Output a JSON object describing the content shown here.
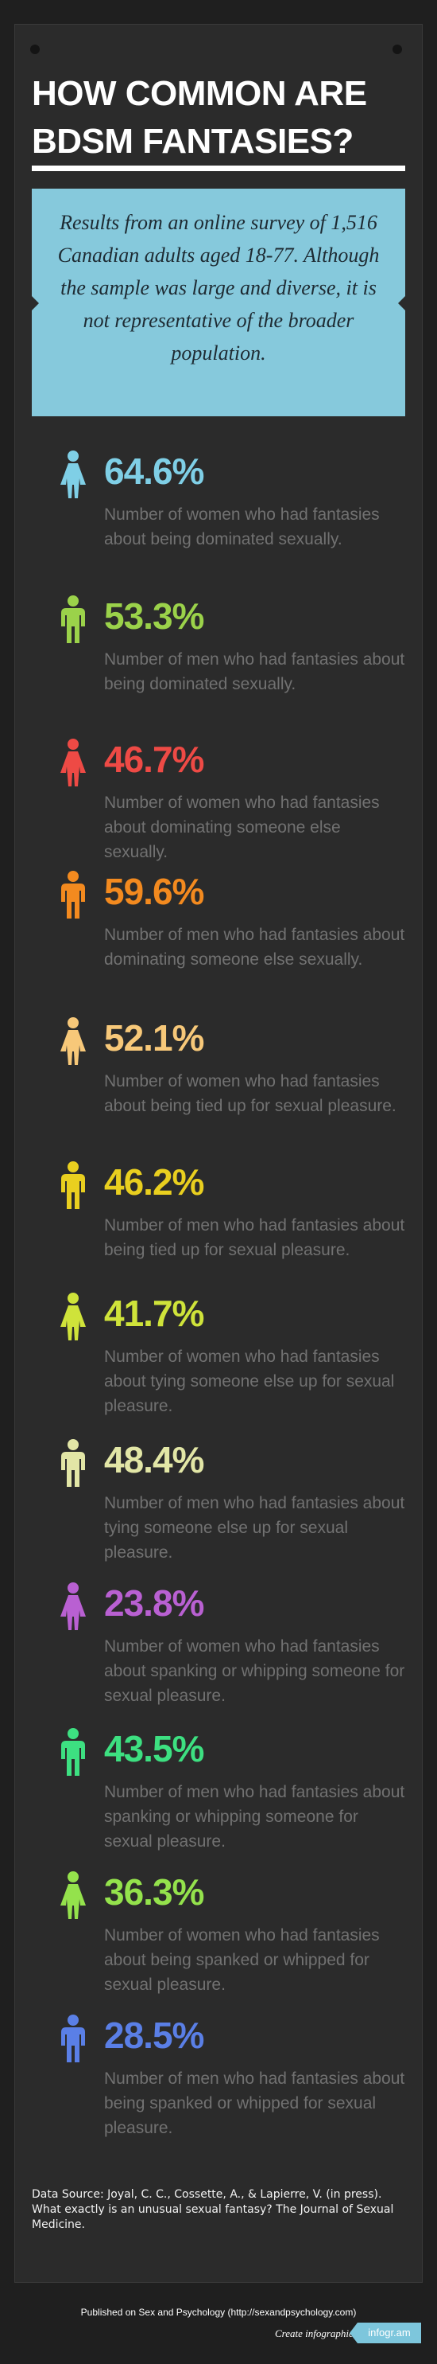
{
  "title_line1": "HOW COMMON ARE",
  "title_line2": "BDSM FANTASIES?",
  "intro": "Results from an online survey of 1,516 Canadian adults aged 18-77. Although the sample was large and diverse, it is not representative of the broader population.",
  "stats": [
    {
      "gender": "female",
      "color": "#7fcfe6",
      "percent": "64.6%",
      "text": "Number of women who had fantasies about being dominated sexually."
    },
    {
      "gender": "male",
      "color": "#9bd24a",
      "percent": "53.3%",
      "text": "Number of men who had fantasies about being dominated sexually."
    },
    {
      "gender": "female",
      "color": "#ee4a45",
      "percent": "46.7%",
      "text": "Number of women who had fantasies about dominating someone else sexually."
    },
    {
      "gender": "male",
      "color": "#f38a1f",
      "percent": "59.6%",
      "text": "Number of men who had fantasies about dominating someone else sexually."
    },
    {
      "gender": "female",
      "color": "#f7c879",
      "percent": "52.1%",
      "text": "Number of women who had fantasies about being tied up for sexual pleasure."
    },
    {
      "gender": "male",
      "color": "#e9cf1f",
      "percent": "46.2%",
      "text": "Number of men who had fantasies about being tied up for sexual pleasure."
    },
    {
      "gender": "female",
      "color": "#cfe33a",
      "percent": "41.7%",
      "text": "Number of women who had fantasies about tying someone else up for sexual pleasure."
    },
    {
      "gender": "male",
      "color": "#e2e6a6",
      "percent": "48.4%",
      "text": "Number of men who had fantasies about tying someone else up for sexual pleasure."
    },
    {
      "gender": "female",
      "color": "#b960d2",
      "percent": "23.8%",
      "text": "Number of women who had fantasies about spanking or whipping someone for sexual pleasure."
    },
    {
      "gender": "male",
      "color": "#3de081",
      "percent": "43.5%",
      "text": "Number of men who had fantasies about spanking or whipping someone for sexual pleasure."
    },
    {
      "gender": "female",
      "color": "#94e24c",
      "percent": "36.3%",
      "text": "Number of women who had fantasies about being spanked or whipped for sexual pleasure."
    },
    {
      "gender": "male",
      "color": "#5a7fe6",
      "percent": "28.5%",
      "text": "Number of men who had fantasies about being spanked or whipped for sexual pleasure."
    }
  ],
  "source": "Data Source: Joyal, C. C., Cossette, A., & Lapierre, V. (in press). What exactly is an unusual sexual fantasy? The Journal of Sexual Medicine.",
  "published": "Published on Sex and Psychology (http://sexandpsychology.com)",
  "create_label": "Create infographics",
  "brand": "infogr.am"
}
